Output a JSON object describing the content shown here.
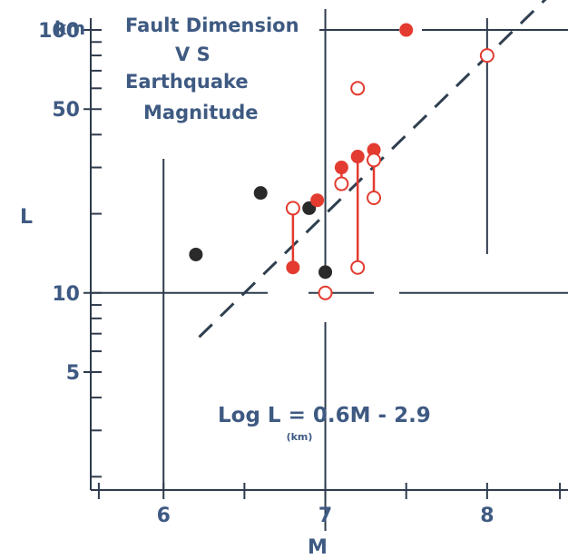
{
  "chart_data": {
    "type": "scatter",
    "title": "Fault Dimension\nV S\nEarthquake\nMagnitude",
    "xlabel": "M",
    "ylabel": "L",
    "yunit": "km",
    "xlim": [
      5.55,
      8.5
    ],
    "ylim": [
      1.78,
      130
    ],
    "yscale": "log",
    "x_ticks": [
      "6",
      "7",
      "8"
    ],
    "y_ticks": [
      "100",
      "50",
      "10",
      "5"
    ],
    "equation": "Log L = 0.6M - 2.9",
    "equation_subscript": "(km)",
    "regression_line": {
      "slope": 0.6,
      "intercept": -2.9
    },
    "series": [
      {
        "marker": "filled",
        "color": "#2a2a2a",
        "points": [
          [
            6.2,
            14
          ],
          [
            6.6,
            24
          ],
          [
            6.9,
            21
          ],
          [
            7.0,
            12
          ]
        ]
      },
      {
        "marker": "filled",
        "color": "#e33b30",
        "points": [
          [
            6.8,
            12.5
          ],
          [
            6.95,
            22.5
          ],
          [
            7.1,
            30
          ],
          [
            7.2,
            33
          ],
          [
            7.3,
            35
          ],
          [
            7.5,
            100
          ]
        ]
      },
      {
        "marker": "open",
        "color": "#e33b30",
        "points": [
          [
            6.8,
            21
          ],
          [
            7.0,
            10
          ],
          [
            7.1,
            26
          ],
          [
            7.2,
            12.5
          ],
          [
            7.2,
            60
          ],
          [
            7.3,
            32
          ],
          [
            7.3,
            23
          ],
          [
            8.0,
            80
          ]
        ]
      }
    ],
    "connectors": [
      {
        "x": 6.8,
        "from": 12.5,
        "to": 21
      },
      {
        "x": 7.2,
        "from": 12.5,
        "to": 33
      },
      {
        "x": 7.3,
        "from": 23,
        "to": 35
      },
      {
        "x": 7.1,
        "from": 26,
        "to": 30
      }
    ],
    "colors": {
      "axis": "#2f3b4c",
      "text": "#3e5a82",
      "accent": "#e33b30",
      "dark_marker": "#2a2a2a"
    }
  }
}
